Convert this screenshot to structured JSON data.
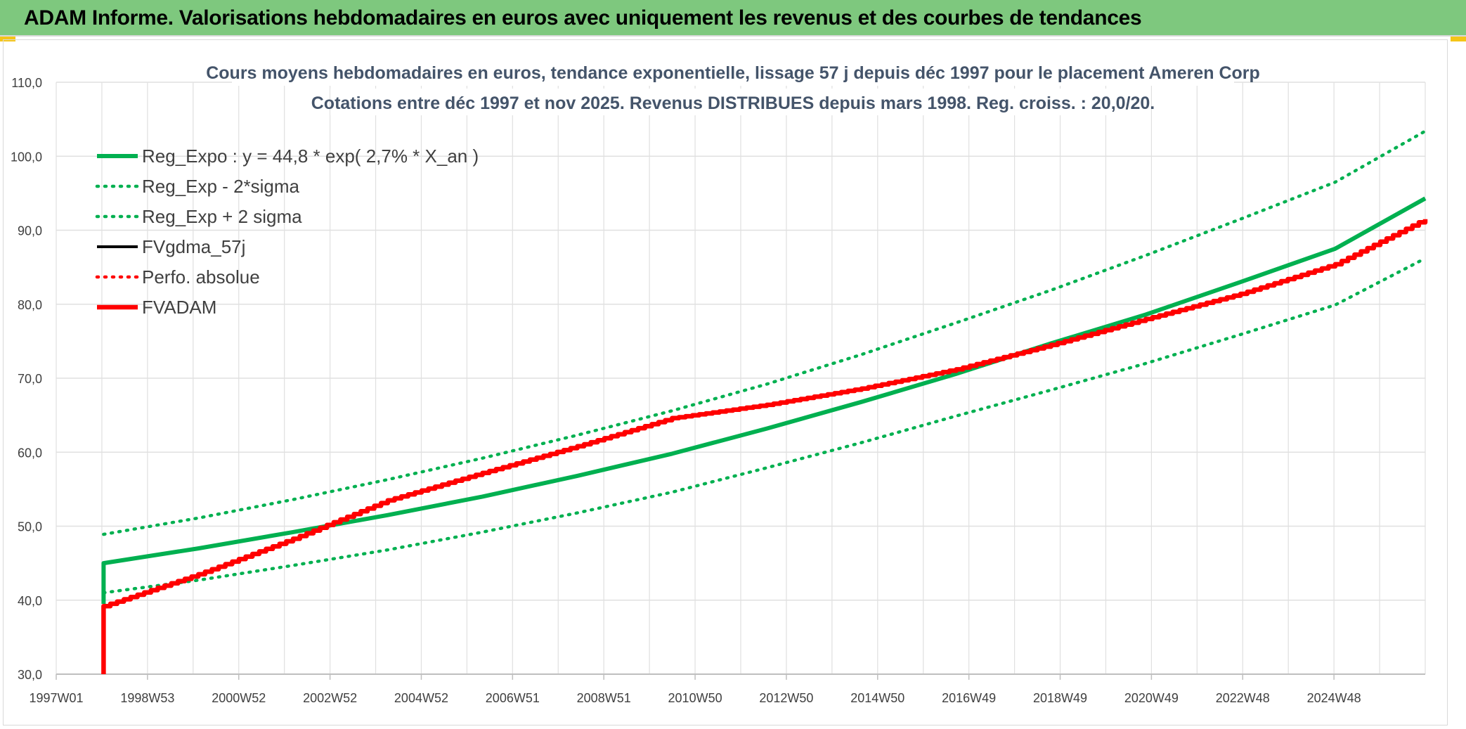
{
  "header": {
    "title": "ADAM Informe. Valorisations hebdomadaires en euros avec uniquement les revenus et des courbes de tendances"
  },
  "colors": {
    "header_bg": "#7ec87e",
    "reg_expo": "#00b050",
    "fvadam": "#ff0000",
    "fvgdma": "#000000",
    "grid": "#e0e0e0"
  },
  "chart_data": {
    "type": "line",
    "title": "Cours moyens hebdomadaires en euros, tendance exponentielle, lissage 57 j depuis déc 1997 pour le placement Ameren Corp",
    "subtitle": "Cotations entre déc 1997 et nov 2025. Revenus DISTRIBUES depuis mars 1998. Reg. croiss. : 20,0/20.",
    "xlabel": "",
    "ylabel": "",
    "ylim": [
      30,
      110
    ],
    "y_ticks": [
      "30,0",
      "40,0",
      "50,0",
      "60,0",
      "70,0",
      "80,0",
      "90,0",
      "100,0",
      "110,0"
    ],
    "x_ticks": [
      "1997W01",
      "1998W53",
      "2000W52",
      "2002W52",
      "2004W52",
      "2006W51",
      "2008W51",
      "2010W50",
      "2012W50",
      "2014W50",
      "2016W49",
      "2018W49",
      "2020W49",
      "2022W48",
      "2024W48"
    ],
    "grid": true,
    "legend_position": "top-left",
    "x_years": [
      1998,
      2000,
      2002,
      2004,
      2006,
      2008,
      2010,
      2012,
      2014,
      2016,
      2018,
      2020,
      2022,
      2024,
      2025.9
    ],
    "series": [
      {
        "name": "Reg_Expo : y = 44,8 * exp( 2,7% *  X_an )",
        "style": "solid-thick",
        "color": "#00b050",
        "values": [
          45.0,
          47.0,
          49.2,
          51.5,
          54.0,
          56.8,
          59.8,
          63.2,
          66.8,
          70.6,
          74.7,
          78.6,
          83.0,
          87.5,
          94.3
        ]
      },
      {
        "name": "Reg_Exp - 2*sigma",
        "style": "dotted",
        "color": "#00b050",
        "values": [
          41.0,
          42.7,
          44.7,
          46.8,
          49.2,
          51.8,
          54.6,
          57.9,
          61.3,
          64.9,
          68.4,
          72.0,
          75.9,
          79.9,
          86.2
        ]
      },
      {
        "name": "Reg_Exp + 2 sigma",
        "style": "dotted",
        "color": "#00b050",
        "values": [
          48.9,
          51.1,
          53.6,
          56.3,
          59.2,
          62.3,
          65.6,
          69.2,
          73.2,
          77.5,
          81.9,
          86.6,
          91.5,
          96.5,
          103.4
        ]
      },
      {
        "name": "FVgdma_57j",
        "style": "solid",
        "color": "#000000",
        "values": []
      },
      {
        "name": "Perfo. absolue",
        "style": "dotted",
        "color": "#ff0000",
        "values": []
      },
      {
        "name": "FVADAM",
        "style": "stepped-thick",
        "color": "#ff0000",
        "values": [
          39.2,
          43.5,
          48.3,
          53.5,
          57.2,
          60.8,
          64.6,
          66.4,
          68.6,
          71.2,
          74.5,
          78.0,
          81.4,
          85.4,
          91.5
        ]
      }
    ]
  }
}
